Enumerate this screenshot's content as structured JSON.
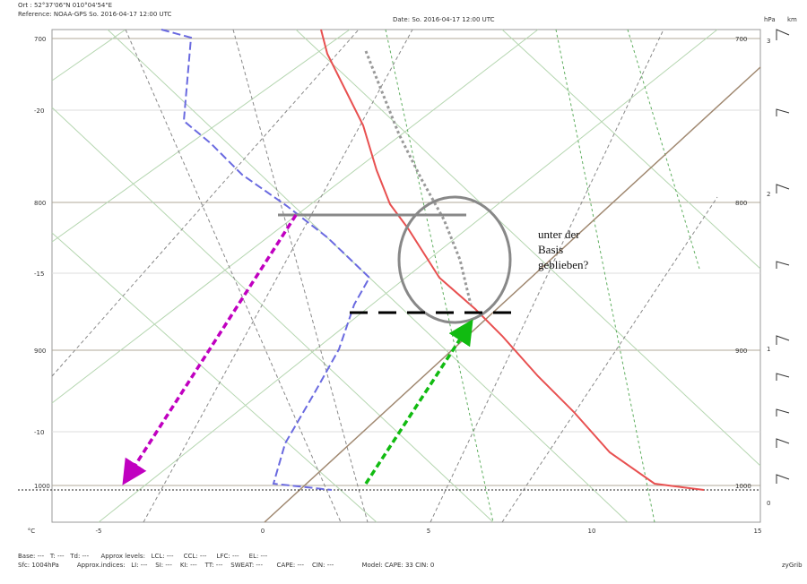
{
  "header": {
    "location": "Ort : 52°37'06\"N  010°04'54\"E",
    "reference": "Reference: NOAA-GPS So. 2016-04-17 12:00 UTC",
    "date": "Date: So. 2016-04-17 12:00 UTC",
    "unit_pressure": "hPa",
    "unit_height": "km"
  },
  "left_labels": [
    "700",
    "-20",
    "800",
    "-15",
    "900",
    "-10",
    "1000"
  ],
  "right_pressure": [
    "700",
    "800",
    "900",
    "1000"
  ],
  "right_km": [
    "3",
    "2",
    "1",
    "0"
  ],
  "bottom_labels": [
    "°C",
    "-5",
    "0",
    "5",
    "10",
    "15"
  ],
  "footer": {
    "line1": "Base: ---   T: ---   Td: ---      Approx levels:   LCL: ---     CCL: ---     LFC: ---     EL: ---",
    "line2": "Sfc: 1004hPa         Approx.indices:   LI: ---    SI: ---    KI: ---    TT: ---    SWEAT: ---       CAPE: ---    CIN: ---              Model: CAPE: 33 CIN: 0",
    "brand": "zyGrib"
  },
  "annotation": [
    "unter der",
    "Basis",
    "geblieben?"
  ]
}
